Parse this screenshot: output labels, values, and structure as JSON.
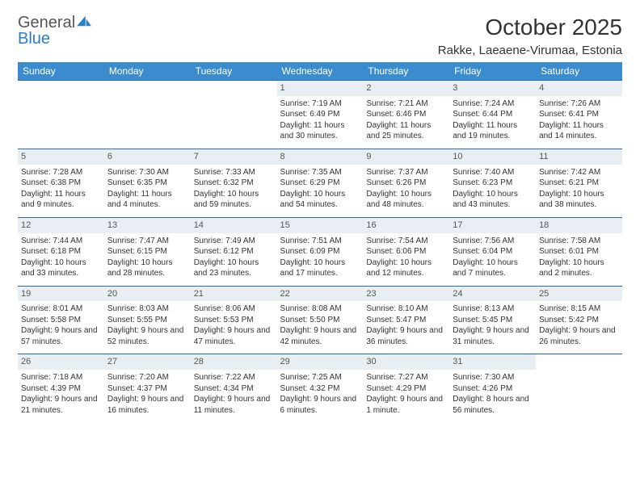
{
  "brand": {
    "name_part1": "General",
    "name_part2": "Blue",
    "text_color": "#555555",
    "accent_color": "#2b7fc4"
  },
  "title": "October 2025",
  "location": "Rakke, Laeaene-Virumaa, Estonia",
  "weekdays": [
    "Sunday",
    "Monday",
    "Tuesday",
    "Wednesday",
    "Thursday",
    "Friday",
    "Saturday"
  ],
  "header_bg": "#3a8ccf",
  "header_text": "#ffffff",
  "row_border": "#2b6aa3",
  "daynum_bg": "#e9eef2",
  "weeks": [
    [
      {
        "n": "",
        "sr": "",
        "ss": "",
        "dl": ""
      },
      {
        "n": "",
        "sr": "",
        "ss": "",
        "dl": ""
      },
      {
        "n": "",
        "sr": "",
        "ss": "",
        "dl": ""
      },
      {
        "n": "1",
        "sr": "Sunrise: 7:19 AM",
        "ss": "Sunset: 6:49 PM",
        "dl": "Daylight: 11 hours and 30 minutes."
      },
      {
        "n": "2",
        "sr": "Sunrise: 7:21 AM",
        "ss": "Sunset: 6:46 PM",
        "dl": "Daylight: 11 hours and 25 minutes."
      },
      {
        "n": "3",
        "sr": "Sunrise: 7:24 AM",
        "ss": "Sunset: 6:44 PM",
        "dl": "Daylight: 11 hours and 19 minutes."
      },
      {
        "n": "4",
        "sr": "Sunrise: 7:26 AM",
        "ss": "Sunset: 6:41 PM",
        "dl": "Daylight: 11 hours and 14 minutes."
      }
    ],
    [
      {
        "n": "5",
        "sr": "Sunrise: 7:28 AM",
        "ss": "Sunset: 6:38 PM",
        "dl": "Daylight: 11 hours and 9 minutes."
      },
      {
        "n": "6",
        "sr": "Sunrise: 7:30 AM",
        "ss": "Sunset: 6:35 PM",
        "dl": "Daylight: 11 hours and 4 minutes."
      },
      {
        "n": "7",
        "sr": "Sunrise: 7:33 AM",
        "ss": "Sunset: 6:32 PM",
        "dl": "Daylight: 10 hours and 59 minutes."
      },
      {
        "n": "8",
        "sr": "Sunrise: 7:35 AM",
        "ss": "Sunset: 6:29 PM",
        "dl": "Daylight: 10 hours and 54 minutes."
      },
      {
        "n": "9",
        "sr": "Sunrise: 7:37 AM",
        "ss": "Sunset: 6:26 PM",
        "dl": "Daylight: 10 hours and 48 minutes."
      },
      {
        "n": "10",
        "sr": "Sunrise: 7:40 AM",
        "ss": "Sunset: 6:23 PM",
        "dl": "Daylight: 10 hours and 43 minutes."
      },
      {
        "n": "11",
        "sr": "Sunrise: 7:42 AM",
        "ss": "Sunset: 6:21 PM",
        "dl": "Daylight: 10 hours and 38 minutes."
      }
    ],
    [
      {
        "n": "12",
        "sr": "Sunrise: 7:44 AM",
        "ss": "Sunset: 6:18 PM",
        "dl": "Daylight: 10 hours and 33 minutes."
      },
      {
        "n": "13",
        "sr": "Sunrise: 7:47 AM",
        "ss": "Sunset: 6:15 PM",
        "dl": "Daylight: 10 hours and 28 minutes."
      },
      {
        "n": "14",
        "sr": "Sunrise: 7:49 AM",
        "ss": "Sunset: 6:12 PM",
        "dl": "Daylight: 10 hours and 23 minutes."
      },
      {
        "n": "15",
        "sr": "Sunrise: 7:51 AM",
        "ss": "Sunset: 6:09 PM",
        "dl": "Daylight: 10 hours and 17 minutes."
      },
      {
        "n": "16",
        "sr": "Sunrise: 7:54 AM",
        "ss": "Sunset: 6:06 PM",
        "dl": "Daylight: 10 hours and 12 minutes."
      },
      {
        "n": "17",
        "sr": "Sunrise: 7:56 AM",
        "ss": "Sunset: 6:04 PM",
        "dl": "Daylight: 10 hours and 7 minutes."
      },
      {
        "n": "18",
        "sr": "Sunrise: 7:58 AM",
        "ss": "Sunset: 6:01 PM",
        "dl": "Daylight: 10 hours and 2 minutes."
      }
    ],
    [
      {
        "n": "19",
        "sr": "Sunrise: 8:01 AM",
        "ss": "Sunset: 5:58 PM",
        "dl": "Daylight: 9 hours and 57 minutes."
      },
      {
        "n": "20",
        "sr": "Sunrise: 8:03 AM",
        "ss": "Sunset: 5:55 PM",
        "dl": "Daylight: 9 hours and 52 minutes."
      },
      {
        "n": "21",
        "sr": "Sunrise: 8:06 AM",
        "ss": "Sunset: 5:53 PM",
        "dl": "Daylight: 9 hours and 47 minutes."
      },
      {
        "n": "22",
        "sr": "Sunrise: 8:08 AM",
        "ss": "Sunset: 5:50 PM",
        "dl": "Daylight: 9 hours and 42 minutes."
      },
      {
        "n": "23",
        "sr": "Sunrise: 8:10 AM",
        "ss": "Sunset: 5:47 PM",
        "dl": "Daylight: 9 hours and 36 minutes."
      },
      {
        "n": "24",
        "sr": "Sunrise: 8:13 AM",
        "ss": "Sunset: 5:45 PM",
        "dl": "Daylight: 9 hours and 31 minutes."
      },
      {
        "n": "25",
        "sr": "Sunrise: 8:15 AM",
        "ss": "Sunset: 5:42 PM",
        "dl": "Daylight: 9 hours and 26 minutes."
      }
    ],
    [
      {
        "n": "26",
        "sr": "Sunrise: 7:18 AM",
        "ss": "Sunset: 4:39 PM",
        "dl": "Daylight: 9 hours and 21 minutes."
      },
      {
        "n": "27",
        "sr": "Sunrise: 7:20 AM",
        "ss": "Sunset: 4:37 PM",
        "dl": "Daylight: 9 hours and 16 minutes."
      },
      {
        "n": "28",
        "sr": "Sunrise: 7:22 AM",
        "ss": "Sunset: 4:34 PM",
        "dl": "Daylight: 9 hours and 11 minutes."
      },
      {
        "n": "29",
        "sr": "Sunrise: 7:25 AM",
        "ss": "Sunset: 4:32 PM",
        "dl": "Daylight: 9 hours and 6 minutes."
      },
      {
        "n": "30",
        "sr": "Sunrise: 7:27 AM",
        "ss": "Sunset: 4:29 PM",
        "dl": "Daylight: 9 hours and 1 minute."
      },
      {
        "n": "31",
        "sr": "Sunrise: 7:30 AM",
        "ss": "Sunset: 4:26 PM",
        "dl": "Daylight: 8 hours and 56 minutes."
      },
      {
        "n": "",
        "sr": "",
        "ss": "",
        "dl": ""
      }
    ]
  ]
}
